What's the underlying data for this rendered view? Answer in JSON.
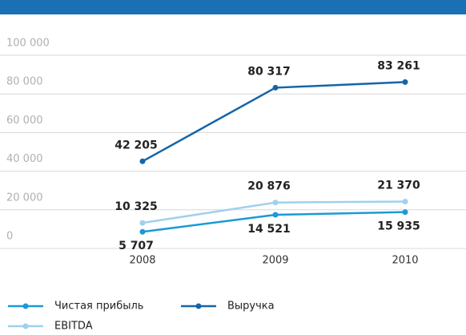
{
  "chart_data": {
    "type": "line",
    "x": [
      "2008",
      "2009",
      "2010"
    ],
    "series": [
      {
        "name": "Чистая прибыль",
        "color": "#1a9ad6",
        "values": [
          5707,
          14521,
          15935
        ],
        "value_labels": [
          "5 707",
          "14 521",
          "15 935"
        ],
        "label_position": "below"
      },
      {
        "name": "Выручка",
        "color": "#1565a8",
        "values": [
          42205,
          80317,
          83261
        ],
        "value_labels": [
          "42 205",
          "80 317",
          "83 261"
        ],
        "label_position": "above"
      },
      {
        "name": "EBITDA",
        "color": "#9fd0ee",
        "values": [
          10325,
          20876,
          21370
        ],
        "value_labels": [
          "10 325",
          "20 876",
          "21 370"
        ],
        "label_position": "above"
      }
    ],
    "ylim": [
      0,
      100000
    ],
    "yticks": [
      0,
      {
        "value": 20000,
        "label": "20 000"
      },
      {
        "value": 40000,
        "label": "40 000"
      },
      {
        "value": 60000,
        "label": "60 000"
      },
      {
        "value": 80000,
        "label": "80 000"
      },
      {
        "value": 100000,
        "label": "100 000"
      }
    ],
    "grid": true
  }
}
